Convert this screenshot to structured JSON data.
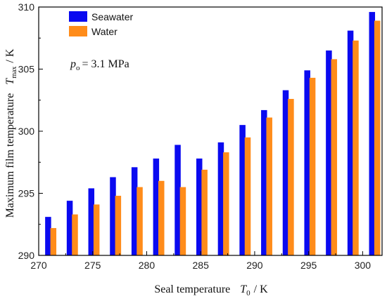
{
  "chart_data": {
    "type": "bar",
    "x": [
      271,
      273,
      275,
      277,
      279,
      281,
      283,
      285,
      287,
      289,
      291,
      293,
      295,
      297,
      299,
      301
    ],
    "series": [
      {
        "name": "Seawater",
        "color": "#0a0af0",
        "values": [
          293.1,
          294.4,
          295.4,
          296.3,
          297.1,
          297.8,
          298.9,
          297.8,
          299.1,
          300.5,
          301.7,
          303.3,
          304.9,
          306.5,
          308.1,
          309.6
        ]
      },
      {
        "name": "Water",
        "color": "#ff8c1a",
        "values": [
          292.2,
          293.3,
          294.1,
          294.8,
          295.5,
          296.0,
          295.5,
          296.9,
          298.3,
          299.5,
          301.1,
          302.6,
          304.3,
          305.8,
          307.3,
          308.9
        ]
      }
    ],
    "xlim": [
      270,
      301.8
    ],
    "ylim": [
      290,
      310
    ],
    "xticks": [
      "270",
      "275",
      "280",
      "285",
      "290",
      "295",
      "300"
    ],
    "yticks": [
      "290",
      "295",
      "300",
      "305",
      "310"
    ],
    "xlabel": {
      "main": "Seal temperature",
      "symbol": "T",
      "sub": "0",
      "unit": "/ K"
    },
    "ylabel": {
      "main": "Maximum film temperature",
      "symbol": "T",
      "sub": "max",
      "unit": "/ K"
    },
    "annotation": {
      "symbol": "p",
      "sub": "o",
      "text": "= 3.1 MPa"
    },
    "legend_placement": "top-left",
    "grid": false
  }
}
